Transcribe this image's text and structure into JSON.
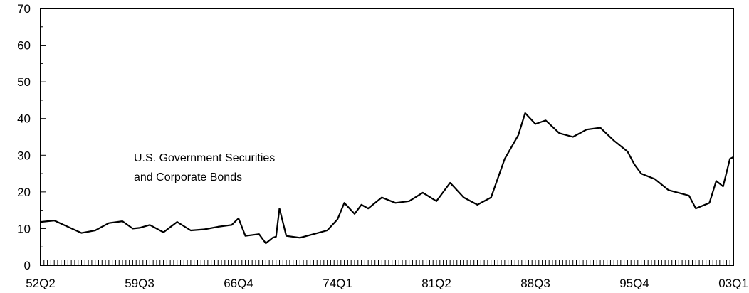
{
  "chart_data": {
    "type": "line",
    "title": "",
    "xlabel": "",
    "ylabel": "",
    "ylim": [
      0,
      70
    ],
    "y_ticks": [
      0,
      10,
      20,
      30,
      40,
      50,
      60,
      70
    ],
    "y_tick_labels": [
      "0",
      "10",
      "20",
      "30",
      "40",
      "50",
      "60",
      "70"
    ],
    "x_range": [
      "52Q2",
      "03Q1"
    ],
    "x_tick_labels": [
      "52Q2",
      "59Q3",
      "66Q4",
      "74Q1",
      "81Q2",
      "88Q3",
      "95Q4",
      "03Q1"
    ],
    "annotation": [
      "U.S. Government Securities",
      "and Corporate Bonds"
    ],
    "grid": false,
    "line_color": "#000000",
    "series": [
      {
        "x": [
          "52Q2",
          "53Q2",
          "54Q2",
          "55Q2",
          "56Q2",
          "57Q2",
          "58Q2",
          "59Q1",
          "59Q3",
          "60Q2",
          "61Q2",
          "62Q2",
          "63Q2",
          "64Q2",
          "65Q2",
          "66Q2",
          "66Q4",
          "67Q2",
          "68Q2",
          "68Q4",
          "69Q2",
          "69Q3",
          "69Q4",
          "70Q2",
          "71Q2",
          "72Q2",
          "73Q2",
          "74Q1",
          "74Q3",
          "75Q2",
          "75Q4",
          "76Q2",
          "77Q2",
          "78Q2",
          "79Q2",
          "80Q2",
          "81Q2",
          "82Q2",
          "83Q2",
          "84Q2",
          "85Q2",
          "86Q2",
          "87Q2",
          "87Q4",
          "88Q3",
          "89Q2",
          "90Q2",
          "91Q2",
          "92Q2",
          "93Q2",
          "94Q2",
          "95Q2",
          "95Q4",
          "96Q2",
          "97Q2",
          "98Q2",
          "99Q2",
          "99Q4",
          "00Q2",
          "01Q2",
          "01Q4",
          "02Q2",
          "02Q4",
          "03Q1"
        ],
        "y": [
          11.8,
          12.2,
          10.5,
          8.8,
          9.5,
          11.5,
          12.0,
          10.0,
          10.2,
          11.0,
          9.0,
          11.8,
          9.5,
          9.8,
          10.5,
          11.0,
          12.8,
          8.0,
          8.5,
          6.0,
          7.5,
          7.8,
          15.5,
          8.0,
          7.5,
          8.5,
          9.5,
          12.5,
          17.0,
          14.0,
          16.5,
          15.5,
          18.5,
          17.0,
          17.5,
          19.8,
          17.5,
          22.5,
          18.5,
          16.5,
          18.5,
          29.0,
          35.5,
          41.5,
          38.5,
          39.5,
          36.0,
          35.0,
          37.0,
          37.5,
          34.0,
          31.0,
          27.5,
          25.0,
          23.5,
          20.5,
          19.5,
          19.0,
          15.5,
          17.0,
          23.0,
          21.5,
          29.0,
          29.5
        ]
      }
    ]
  }
}
